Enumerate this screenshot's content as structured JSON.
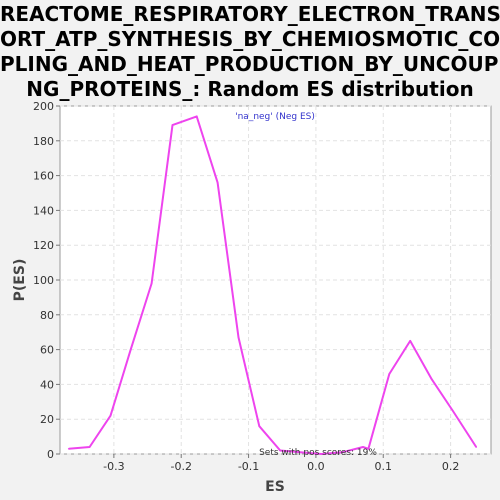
{
  "title_lines": [
    "REACTOME_RESPIRATORY_ELECTRON_TRANSP",
    "ORT_ATP_SYNTHESIS_BY_CHEMIOSMOTIC_COU",
    "PLING_AND_HEAT_PRODUCTION_BY_UNCOUPLI",
    "NG_PROTEINS_: Random ES distribution"
  ],
  "chart_data": {
    "type": "line",
    "xlabel": "ES",
    "ylabel": "P(ES)",
    "xlim": [
      -0.38,
      0.26
    ],
    "ylim": [
      0,
      200
    ],
    "x_ticks": [
      -0.3,
      -0.2,
      -0.1,
      0.0,
      0.1,
      0.2
    ],
    "x_tick_labels": [
      "-0.3",
      "-0.2",
      "-0.1",
      "0.0",
      "0.1",
      "0.2"
    ],
    "y_ticks": [
      0,
      20,
      40,
      60,
      80,
      100,
      120,
      140,
      160,
      180,
      200
    ],
    "y_tick_labels": [
      "0",
      "20",
      "40",
      "60",
      "80",
      "100",
      "120",
      "140",
      "160",
      "180",
      "200"
    ],
    "grid": true,
    "legend": "'na_neg' (Neg ES)",
    "legend_position": "top-center",
    "annotation": "Sets with pos scores: 19%",
    "series": [
      {
        "name": "'na_neg' (Neg ES)",
        "color": "#ee44ee",
        "x": [
          -0.367,
          -0.336,
          -0.305,
          -0.275,
          -0.244,
          -0.213,
          -0.177,
          -0.146,
          -0.115,
          -0.084,
          -0.053,
          -0.023,
          0.008,
          0.039,
          0.07,
          0.078,
          0.109,
          0.14,
          0.172,
          0.203,
          0.238
        ],
        "y": [
          3,
          4,
          22,
          60,
          98,
          189,
          194,
          156,
          67,
          16,
          2,
          1,
          0,
          1,
          4,
          3,
          46,
          65,
          43,
          25,
          4
        ]
      }
    ]
  }
}
